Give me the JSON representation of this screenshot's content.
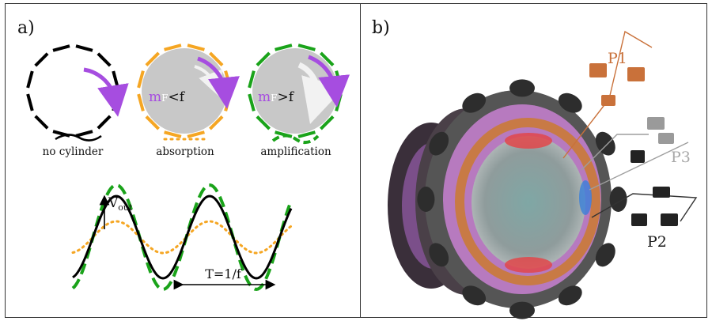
{
  "panel_a": {
    "label": "a)",
    "diagrams": [
      {
        "caption": "no cylinder",
        "ring_color": "#000000"
      },
      {
        "caption": "absorption",
        "ring_color": "#f5a623",
        "speed_label": {
          "m": "m",
          "omega": "F",
          "rel": "<f"
        }
      },
      {
        "caption": "amplification",
        "ring_color": "#1aa31a",
        "speed_label": {
          "m": "m",
          "omega": "F",
          "rel": ">f"
        }
      }
    ],
    "waveform": {
      "vout_label": "V",
      "vout_sub": "out",
      "period_label": "T=1/f"
    }
  },
  "panel_b": {
    "label": "b)",
    "probes": [
      {
        "name": "P1",
        "color": "#c9713a"
      },
      {
        "name": "P3",
        "color": "#9e9e9e"
      },
      {
        "name": "P2",
        "color": "#1a1a1a"
      }
    ]
  },
  "colors": {
    "purple": "#a64de0",
    "cylinder_gray": "#c8c8c8",
    "orange": "#f5a623",
    "green": "#1aa31a",
    "copper": "#c87a45"
  }
}
